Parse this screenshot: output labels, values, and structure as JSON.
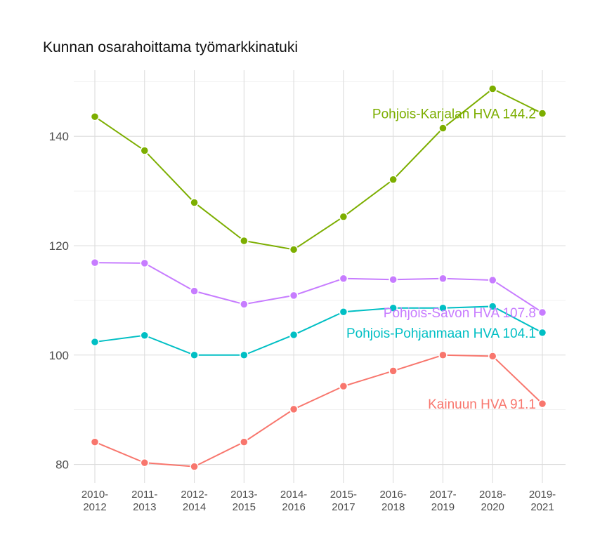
{
  "title": "Kunnan osarahoittama työmarkkinatuki",
  "chart_data": {
    "type": "line",
    "title": "Kunnan osarahoittama työmarkkinatuki",
    "xlabel": "",
    "ylabel": "",
    "categories": [
      "2010-2012",
      "2011-2013",
      "2012-2014",
      "2013-2015",
      "2014-2016",
      "2015-2017",
      "2016-2018",
      "2017-2019",
      "2018-2020",
      "2019-2021"
    ],
    "category_lines": [
      [
        "2010-",
        "2012"
      ],
      [
        "2011-",
        "2013"
      ],
      [
        "2012-",
        "2014"
      ],
      [
        "2013-",
        "2015"
      ],
      [
        "2014-",
        "2016"
      ],
      [
        "2015-",
        "2017"
      ],
      [
        "2016-",
        "2018"
      ],
      [
        "2017-",
        "2019"
      ],
      [
        "2018-",
        "2020"
      ],
      [
        "2019-",
        "2021"
      ]
    ],
    "yticks": [
      80,
      100,
      120,
      140
    ],
    "ylim": [
      76.6,
      152.1
    ],
    "grid": true,
    "legend": "none",
    "series": [
      {
        "name": "Pohjois-Karjalan HVA",
        "label": "Pohjois-Karjalan HVA 144.2",
        "color": "#7CAE00",
        "values": [
          143.6,
          137.4,
          127.9,
          120.9,
          119.3,
          125.3,
          132.1,
          141.5,
          148.7,
          144.2
        ]
      },
      {
        "name": "Pohjois-Savon HVA",
        "label": "Pohjois-Savon HVA 107.8",
        "color": "#C77CFF",
        "values": [
          116.9,
          116.8,
          111.7,
          109.3,
          110.9,
          114.0,
          113.8,
          114.0,
          113.7,
          107.8
        ]
      },
      {
        "name": "Pohjois-Pohjanmaan HVA",
        "label": "Pohjois-Pohjanmaan HVA 104.1",
        "color": "#00BFC4",
        "values": [
          102.4,
          103.6,
          100.0,
          100.0,
          103.7,
          107.9,
          108.6,
          108.6,
          108.9,
          104.1
        ]
      },
      {
        "name": "Kainuun HVA",
        "label": "Kainuun HVA 91.1",
        "color": "#F8766D",
        "values": [
          84.1,
          80.3,
          79.6,
          84.1,
          90.1,
          94.3,
          97.1,
          100.0,
          99.8,
          91.1
        ]
      }
    ]
  }
}
